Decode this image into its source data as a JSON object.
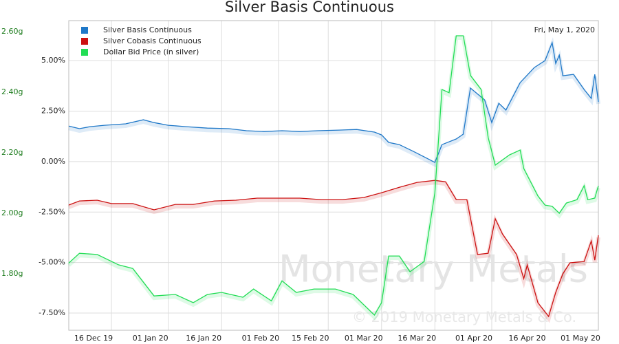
{
  "chart_data": {
    "type": "line",
    "title": "Silver Basis Continuous",
    "annotation": "Fri, May 1, 2020",
    "watermark": "Monetary Metals",
    "copyright": "© 2019 Monetary Metals & Co.",
    "grid": true,
    "legend": "upper left",
    "xlim": [
      "2019-12-04",
      "2020-05-01"
    ],
    "xticks": [
      {
        "value": "2019-12-16",
        "label": "16 Dec 19"
      },
      {
        "value": "2020-01-01",
        "label": "01 Jan 20"
      },
      {
        "value": "2020-01-16",
        "label": "16 Jan 20"
      },
      {
        "value": "2020-02-01",
        "label": "01 Feb 20"
      },
      {
        "value": "2020-02-15",
        "label": "15 Feb 20"
      },
      {
        "value": "2020-03-01",
        "label": "01 Mar 20"
      },
      {
        "value": "2020-03-16",
        "label": "16 Mar 20"
      },
      {
        "value": "2020-04-01",
        "label": "01 Apr 20"
      },
      {
        "value": "2020-04-16",
        "label": "16 Apr 20"
      },
      {
        "value": "2020-05-01",
        "label": "01 May 20"
      }
    ],
    "ylim": [
      -8.35,
      6.98
    ],
    "yticks": [
      {
        "value": 5,
        "label": "5.00%"
      },
      {
        "value": 2.5,
        "label": "2.50%"
      },
      {
        "value": 0,
        "label": "0.00%"
      },
      {
        "value": -2.5,
        "label": "-2.50%"
      },
      {
        "value": -5,
        "label": "-5.00%"
      },
      {
        "value": -7.5,
        "label": "-7.50%"
      }
    ],
    "y2lim": [
      1.614,
      2.636
    ],
    "y2ticks": [
      {
        "value": 2.6,
        "label": "2.60g"
      },
      {
        "value": 2.4,
        "label": "2.40g"
      },
      {
        "value": 2.2,
        "label": "2.20g"
      },
      {
        "value": 2.0,
        "label": "2.00g"
      },
      {
        "value": 1.8,
        "label": "1.80g"
      }
    ],
    "series": [
      {
        "name": "Silver Basis Continuous",
        "color": "#1f78c8",
        "x": [
          "2019-12-04",
          "2019-12-07",
          "2019-12-10",
          "2019-12-14",
          "2019-12-20",
          "2019-12-25",
          "2019-12-28",
          "2020-01-01",
          "2020-01-06",
          "2020-01-12",
          "2020-01-18",
          "2020-01-23",
          "2020-01-28",
          "2020-02-02",
          "2020-02-07",
          "2020-02-12",
          "2020-02-18",
          "2020-02-23",
          "2020-02-28",
          "2020-03-01",
          "2020-03-03",
          "2020-03-06",
          "2020-03-10",
          "2020-03-13",
          "2020-03-16",
          "2020-03-18",
          "2020-03-22",
          "2020-03-24",
          "2020-03-26",
          "2020-03-30",
          "2020-04-01",
          "2020-04-03",
          "2020-04-05",
          "2020-04-09",
          "2020-04-13",
          "2020-04-16",
          "2020-04-18",
          "2020-04-19",
          "2020-04-20",
          "2020-04-21",
          "2020-04-24",
          "2020-04-27",
          "2020-04-29",
          "2020-04-30",
          "2020-05-01"
        ],
        "values": [
          1.76,
          1.63,
          1.73,
          1.8,
          1.87,
          2.07,
          1.93,
          1.8,
          1.73,
          1.66,
          1.63,
          1.53,
          1.49,
          1.53,
          1.49,
          1.53,
          1.56,
          1.59,
          1.46,
          1.32,
          0.95,
          0.84,
          0.5,
          0.23,
          -0.04,
          0.84,
          1.12,
          1.36,
          3.64,
          3.06,
          1.93,
          2.89,
          2.55,
          3.91,
          4.66,
          5.0,
          5.89,
          4.86,
          5.27,
          4.25,
          4.32,
          3.57,
          3.13,
          4.32,
          2.96
        ]
      },
      {
        "name": "Silver Cobasis Continuous",
        "color": "#cc1111",
        "x": [
          "2019-12-04",
          "2019-12-07",
          "2019-12-12",
          "2019-12-16",
          "2019-12-22",
          "2019-12-28",
          "2020-01-03",
          "2020-01-08",
          "2020-01-14",
          "2020-01-20",
          "2020-01-26",
          "2020-02-01",
          "2020-02-07",
          "2020-02-13",
          "2020-02-19",
          "2020-02-25",
          "2020-03-01",
          "2020-03-06",
          "2020-03-11",
          "2020-03-16",
          "2020-03-19",
          "2020-03-22",
          "2020-03-25",
          "2020-03-28",
          "2020-03-31",
          "2020-04-02",
          "2020-04-04",
          "2020-04-06",
          "2020-04-08",
          "2020-04-10",
          "2020-04-11",
          "2020-04-14",
          "2020-04-17",
          "2020-04-19",
          "2020-04-21",
          "2020-04-23",
          "2020-04-27",
          "2020-04-29",
          "2020-04-30",
          "2020-05-01"
        ],
        "values": [
          -2.15,
          -1.95,
          -1.91,
          -2.08,
          -2.08,
          -2.39,
          -2.12,
          -2.12,
          -1.95,
          -1.91,
          -1.81,
          -1.81,
          -1.81,
          -1.88,
          -1.88,
          -1.78,
          -1.54,
          -1.27,
          -1.03,
          -0.93,
          -1.0,
          -1.88,
          -1.88,
          -4.6,
          -4.54,
          -2.83,
          -3.58,
          -4.09,
          -4.6,
          -5.8,
          -5.12,
          -6.99,
          -7.67,
          -6.48,
          -5.56,
          -5.01,
          -4.95,
          -3.93,
          -4.88,
          -3.65
        ]
      },
      {
        "name": "Dollar Bid Price (in silver)",
        "color": "#22dd55",
        "axis": "y2",
        "x": [
          "2019-12-04",
          "2019-12-07",
          "2019-12-12",
          "2019-12-18",
          "2019-12-22",
          "2019-12-28",
          "2020-01-03",
          "2020-01-08",
          "2020-01-12",
          "2020-01-16",
          "2020-01-22",
          "2020-01-25",
          "2020-01-30",
          "2020-02-02",
          "2020-02-06",
          "2020-02-11",
          "2020-02-17",
          "2020-02-22",
          "2020-02-28",
          "2020-03-01",
          "2020-03-03",
          "2020-03-06",
          "2020-03-09",
          "2020-03-13",
          "2020-03-16",
          "2020-03-18",
          "2020-03-20",
          "2020-03-22",
          "2020-03-24",
          "2020-03-26",
          "2020-03-29",
          "2020-03-31",
          "2020-04-02",
          "2020-04-06",
          "2020-04-09",
          "2020-04-10",
          "2020-04-14",
          "2020-04-16",
          "2020-04-18",
          "2020-04-20",
          "2020-04-22",
          "2020-04-25",
          "2020-04-27",
          "2020-04-28",
          "2020-04-30",
          "2020-05-01"
        ],
        "values": [
          1.836,
          1.868,
          1.864,
          1.83,
          1.818,
          1.727,
          1.732,
          1.705,
          1.732,
          1.739,
          1.723,
          1.75,
          1.711,
          1.777,
          1.739,
          1.75,
          1.75,
          1.732,
          1.664,
          1.705,
          1.859,
          1.859,
          1.807,
          1.841,
          2.068,
          2.409,
          2.398,
          2.586,
          2.586,
          2.455,
          2.409,
          2.25,
          2.159,
          2.193,
          2.209,
          2.148,
          2.057,
          2.027,
          2.023,
          2.0,
          2.034,
          2.045,
          2.091,
          2.045,
          2.05,
          2.091
        ]
      }
    ]
  }
}
